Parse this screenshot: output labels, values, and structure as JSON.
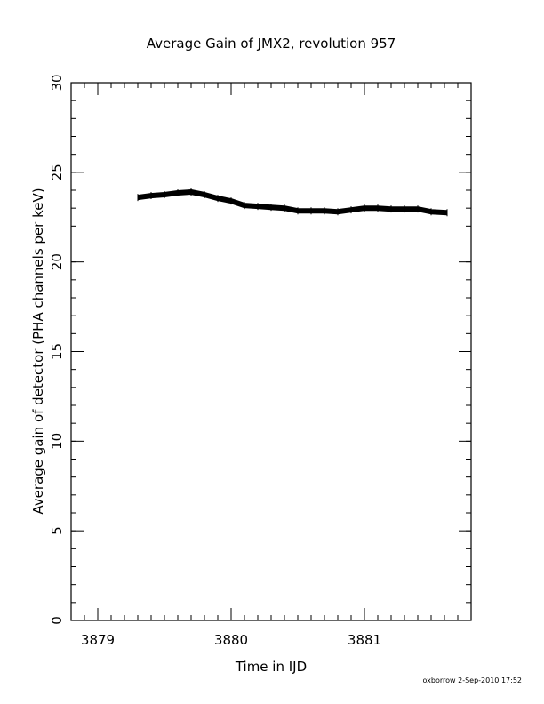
{
  "chart_data": {
    "type": "line",
    "title": "Average Gain of JMX2, revolution 957",
    "xlabel": "Time in IJD",
    "ylabel": "Average gain of detector (PHA channels per keV)",
    "xlim": [
      3878.8,
      3881.8
    ],
    "ylim": [
      0,
      30
    ],
    "x_ticks": [
      3879,
      3880,
      3881
    ],
    "y_ticks": [
      0,
      5,
      10,
      15,
      20,
      25,
      30
    ],
    "x_minor_step": 0.1,
    "y_minor_step": 1,
    "grid": false,
    "series": [
      {
        "x": [
          3879.3,
          3879.4,
          3879.5,
          3879.6,
          3879.7,
          3879.8,
          3879.9,
          3880.0,
          3880.1,
          3880.2,
          3880.3,
          3880.4,
          3880.5,
          3880.6,
          3880.7,
          3880.8,
          3880.9,
          3881.0,
          3881.1,
          3881.2,
          3881.3,
          3881.4,
          3881.5,
          3881.62
        ],
        "values": [
          23.6,
          23.7,
          23.75,
          23.85,
          23.9,
          23.75,
          23.55,
          23.4,
          23.15,
          23.1,
          23.05,
          23.0,
          22.85,
          22.85,
          22.85,
          22.8,
          22.9,
          23.0,
          23.0,
          22.95,
          22.95,
          22.95,
          22.8,
          22.75
        ],
        "color": "#000000"
      }
    ]
  },
  "footer": "oxborrow  2-Sep-2010 17:52"
}
